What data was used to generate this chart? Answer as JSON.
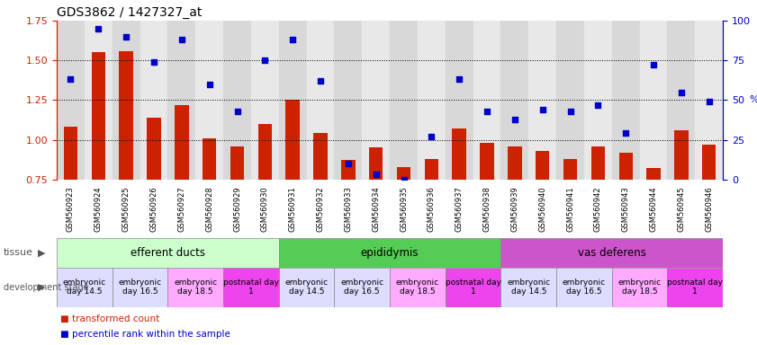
{
  "title": "GDS3862 / 1427327_at",
  "samples": [
    "GSM560923",
    "GSM560924",
    "GSM560925",
    "GSM560926",
    "GSM560927",
    "GSM560928",
    "GSM560929",
    "GSM560930",
    "GSM560931",
    "GSM560932",
    "GSM560933",
    "GSM560934",
    "GSM560935",
    "GSM560936",
    "GSM560937",
    "GSM560938",
    "GSM560939",
    "GSM560940",
    "GSM560941",
    "GSM560942",
    "GSM560943",
    "GSM560944",
    "GSM560945",
    "GSM560946"
  ],
  "bar_values": [
    1.08,
    1.55,
    1.56,
    1.14,
    1.22,
    1.01,
    0.96,
    1.1,
    1.25,
    1.04,
    0.87,
    0.95,
    0.83,
    0.88,
    1.07,
    0.98,
    0.96,
    0.93,
    0.88,
    0.96,
    0.92,
    0.82,
    1.06,
    0.97
  ],
  "scatter_pct": [
    63,
    95,
    90,
    74,
    88,
    60,
    43,
    75,
    88,
    62,
    10,
    3,
    0,
    27,
    63,
    43,
    38,
    44,
    43,
    47,
    29,
    72,
    55,
    49
  ],
  "bar_color": "#cc2200",
  "scatter_color": "#0000cc",
  "ylim_left": [
    0.75,
    1.75
  ],
  "ylim_right": [
    0,
    100
  ],
  "yticks_left": [
    0.75,
    1.0,
    1.25,
    1.5,
    1.75
  ],
  "yticks_right": [
    0,
    25,
    50,
    75,
    100
  ],
  "hlines": [
    1.0,
    1.25,
    1.5
  ],
  "tissue_groups": [
    {
      "label": "efferent ducts",
      "start": 0,
      "end": 7,
      "color": "#ccffcc"
    },
    {
      "label": "epididymis",
      "start": 8,
      "end": 15,
      "color": "#55cc55"
    },
    {
      "label": "vas deferens",
      "start": 16,
      "end": 23,
      "color": "#cc55cc"
    }
  ],
  "dev_stage_groups": [
    {
      "label": "embryonic\nday 14.5",
      "start": 0,
      "end": 1,
      "color": "#ddddff"
    },
    {
      "label": "embryonic\nday 16.5",
      "start": 2,
      "end": 3,
      "color": "#ddddff"
    },
    {
      "label": "embryonic\nday 18.5",
      "start": 4,
      "end": 5,
      "color": "#ffaaff"
    },
    {
      "label": "postnatal day\n1",
      "start": 6,
      "end": 7,
      "color": "#ee44ee"
    },
    {
      "label": "embryonic\nday 14.5",
      "start": 8,
      "end": 9,
      "color": "#ddddff"
    },
    {
      "label": "embryonic\nday 16.5",
      "start": 10,
      "end": 11,
      "color": "#ddddff"
    },
    {
      "label": "embryonic\nday 18.5",
      "start": 12,
      "end": 13,
      "color": "#ffaaff"
    },
    {
      "label": "postnatal day\n1",
      "start": 14,
      "end": 15,
      "color": "#ee44ee"
    },
    {
      "label": "embryonic\nday 14.5",
      "start": 16,
      "end": 17,
      "color": "#ddddff"
    },
    {
      "label": "embryonic\nday 16.5",
      "start": 18,
      "end": 19,
      "color": "#ddddff"
    },
    {
      "label": "embryonic\nday 18.5",
      "start": 20,
      "end": 21,
      "color": "#ffaaff"
    },
    {
      "label": "postnatal day\n1",
      "start": 22,
      "end": 23,
      "color": "#ee44ee"
    }
  ],
  "col_colors": [
    "#d8d8d8",
    "#e8e8e8"
  ],
  "background_color": "#ffffff"
}
